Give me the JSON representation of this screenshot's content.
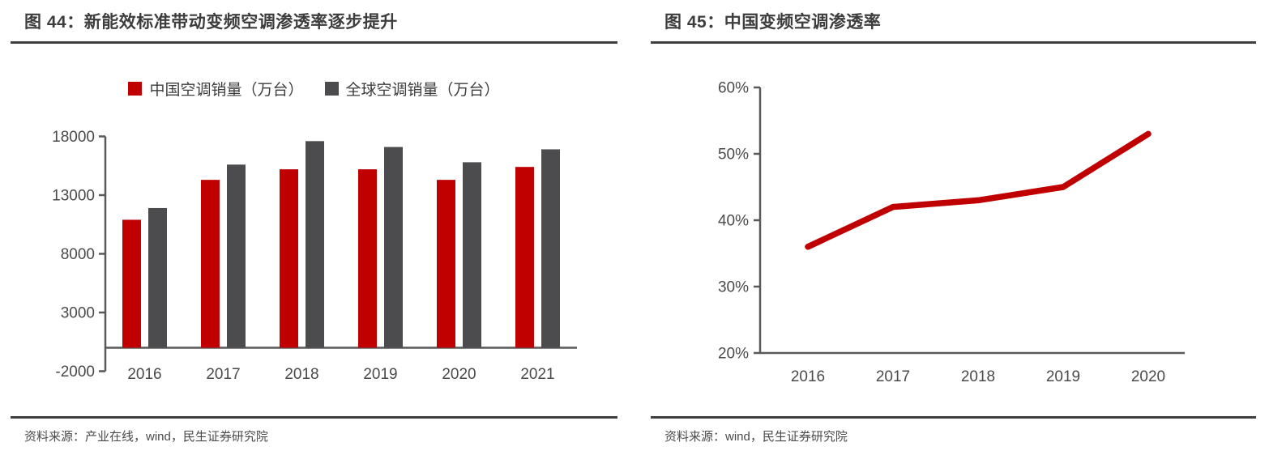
{
  "colors": {
    "accent_red": "#C00000",
    "bar_gray": "#4C4C4E",
    "axis_line": "#595959",
    "tick_text": "#4A4A4A",
    "title_text": "#3D3D3D",
    "rule": "#3F3F3F",
    "source_text": "#4A4A4A"
  },
  "sources": [
    "资料来源：产业在线，wind，民生证券研究院",
    "资料来源：wind，民生证券研究院"
  ],
  "chart_data": [
    {
      "type": "bar",
      "title": "图 44：新能效标准带动变频空调渗透率逐步提升",
      "categories": [
        "2016",
        "2017",
        "2018",
        "2019",
        "2020",
        "2021"
      ],
      "series": [
        {
          "name": "中国空调销量（万台）",
          "color": "#C00000",
          "values": [
            10900,
            14300,
            15200,
            15200,
            14300,
            15400
          ]
        },
        {
          "name": "全球空调销量（万台）",
          "color": "#4C4C4E",
          "values": [
            11900,
            15600,
            17600,
            17100,
            15800,
            16900
          ]
        }
      ],
      "xlabel": "",
      "ylabel": "",
      "ylim": [
        -2000,
        18000
      ],
      "yticks": [
        18000,
        13000,
        8000,
        3000,
        -2000
      ],
      "ytick_suffix": "",
      "grid": false,
      "legend_position": "top"
    },
    {
      "type": "line",
      "title": "图 45：中国变频空调渗透率",
      "categories": [
        "2016",
        "2017",
        "2018",
        "2019",
        "2020"
      ],
      "series": [
        {
          "name": "中国变频空调渗透率",
          "color": "#C00000",
          "values": [
            36,
            42,
            43,
            45,
            53
          ]
        }
      ],
      "xlabel": "",
      "ylabel": "",
      "ylim": [
        20,
        60
      ],
      "yticks": [
        60,
        50,
        40,
        30,
        20
      ],
      "ytick_suffix": "%",
      "grid": false,
      "legend_position": "none"
    }
  ]
}
